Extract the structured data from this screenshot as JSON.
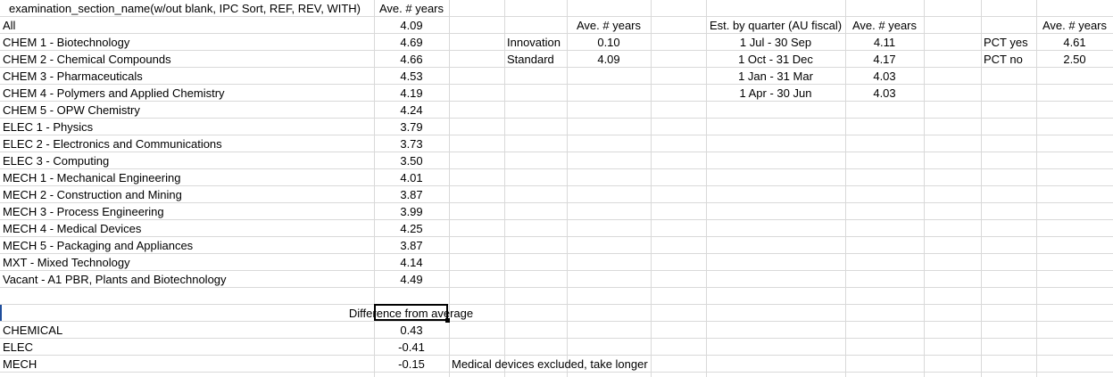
{
  "left_table": {
    "header_label": "examination_section_name(w/out blank, IPC Sort, REF, REV, WITH)",
    "header_value": "Ave. # years",
    "rows": [
      {
        "label": "All",
        "value": "4.09"
      },
      {
        "label": "CHEM 1 - Biotechnology",
        "value": "4.69"
      },
      {
        "label": "CHEM 2 - Chemical Compounds",
        "value": "4.66"
      },
      {
        "label": "CHEM 3 - Pharmaceuticals",
        "value": "4.53"
      },
      {
        "label": "CHEM 4 - Polymers and Applied Chemistry",
        "value": "4.19"
      },
      {
        "label": "CHEM 5 - OPW Chemistry",
        "value": "4.24"
      },
      {
        "label": "ELEC 1 - Physics",
        "value": "3.79"
      },
      {
        "label": "ELEC 2 - Electronics and Communications",
        "value": "3.73"
      },
      {
        "label": "ELEC 3 - Computing",
        "value": "3.50"
      },
      {
        "label": "MECH 1 - Mechanical Engineering",
        "value": "4.01"
      },
      {
        "label": "MECH 2 - Construction and Mining",
        "value": "3.87"
      },
      {
        "label": "MECH 3 - Process Engineering",
        "value": "3.99"
      },
      {
        "label": "MECH 4 - Medical Devices",
        "value": "4.25"
      },
      {
        "label": "MECH 5 - Packaging and Appliances",
        "value": "3.87"
      },
      {
        "label": "MXT - Mixed Technology",
        "value": "4.14"
      },
      {
        "label": "Vacant - A1 PBR, Plants and Biotechnology",
        "value": "4.49"
      }
    ]
  },
  "difference": {
    "title": "Difference from average",
    "rows": [
      {
        "label": "CHEMICAL",
        "value": "0.43"
      },
      {
        "label": "ELEC",
        "value": "-0.41"
      },
      {
        "label": "MECH",
        "value": "-0.15",
        "note": "Medical devices excluded, take longer"
      }
    ]
  },
  "type_table": {
    "header_value": "Ave. # years",
    "rows": [
      {
        "label": "Innovation",
        "value": "0.10"
      },
      {
        "label": "Standard",
        "value": "4.09"
      }
    ]
  },
  "quarter_table": {
    "header_label": "Est. by quarter (AU fiscal)",
    "header_value": "Ave. # years",
    "rows": [
      {
        "label": "1 Jul - 30 Sep",
        "value": "4.11"
      },
      {
        "label": "1 Oct - 31 Dec",
        "value": "4.17"
      },
      {
        "label": "1 Jan - 31 Mar",
        "value": "4.03"
      },
      {
        "label": "1 Apr - 30 Jun",
        "value": "4.03"
      }
    ]
  },
  "pct_table": {
    "header_value": "Ave. # years",
    "rows": [
      {
        "label": "PCT yes",
        "value": "4.61"
      },
      {
        "label": "PCT no",
        "value": "2.50"
      }
    ]
  }
}
